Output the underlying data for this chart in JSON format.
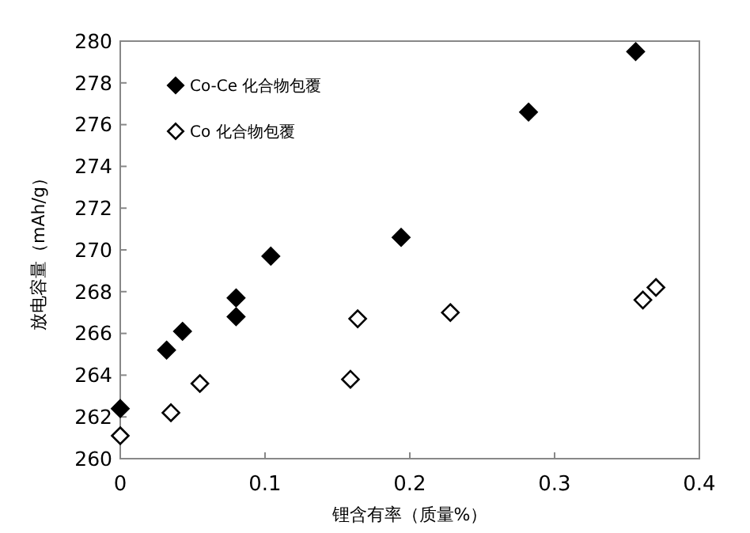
{
  "chart_data": {
    "type": "scatter",
    "xlabel": "锂含有率（质量%）",
    "ylabel": "放电容量（mAh/g）",
    "xlim": [
      0,
      0.4
    ],
    "xticks": [
      0,
      0.1,
      0.2,
      0.3,
      0.4
    ],
    "ylim": [
      260,
      280
    ],
    "yticks": [
      260,
      262,
      264,
      266,
      268,
      270,
      272,
      274,
      276,
      278,
      280
    ],
    "grid": false,
    "legend": "top left",
    "marker": "diamond",
    "series": [
      {
        "name": "Co-Ce 化合物包覆",
        "color": "#000000",
        "x": [
          0,
          0.032,
          0.043,
          0.08,
          0.08,
          0.104,
          0.194,
          0.282,
          0.356
        ],
        "values": [
          262.4,
          265.2,
          266.1,
          267.7,
          266.8,
          269.7,
          270.6,
          276.6,
          279.5
        ]
      },
      {
        "name": "Co 化合物包覆",
        "color": "#000000",
        "x": [
          0,
          0.035,
          0.055,
          0.159,
          0.164,
          0.228,
          0.361,
          0.37
        ],
        "values": [
          261.1,
          262.2,
          263.6,
          263.8,
          266.7,
          267.0,
          267.6,
          268.2
        ]
      }
    ]
  }
}
